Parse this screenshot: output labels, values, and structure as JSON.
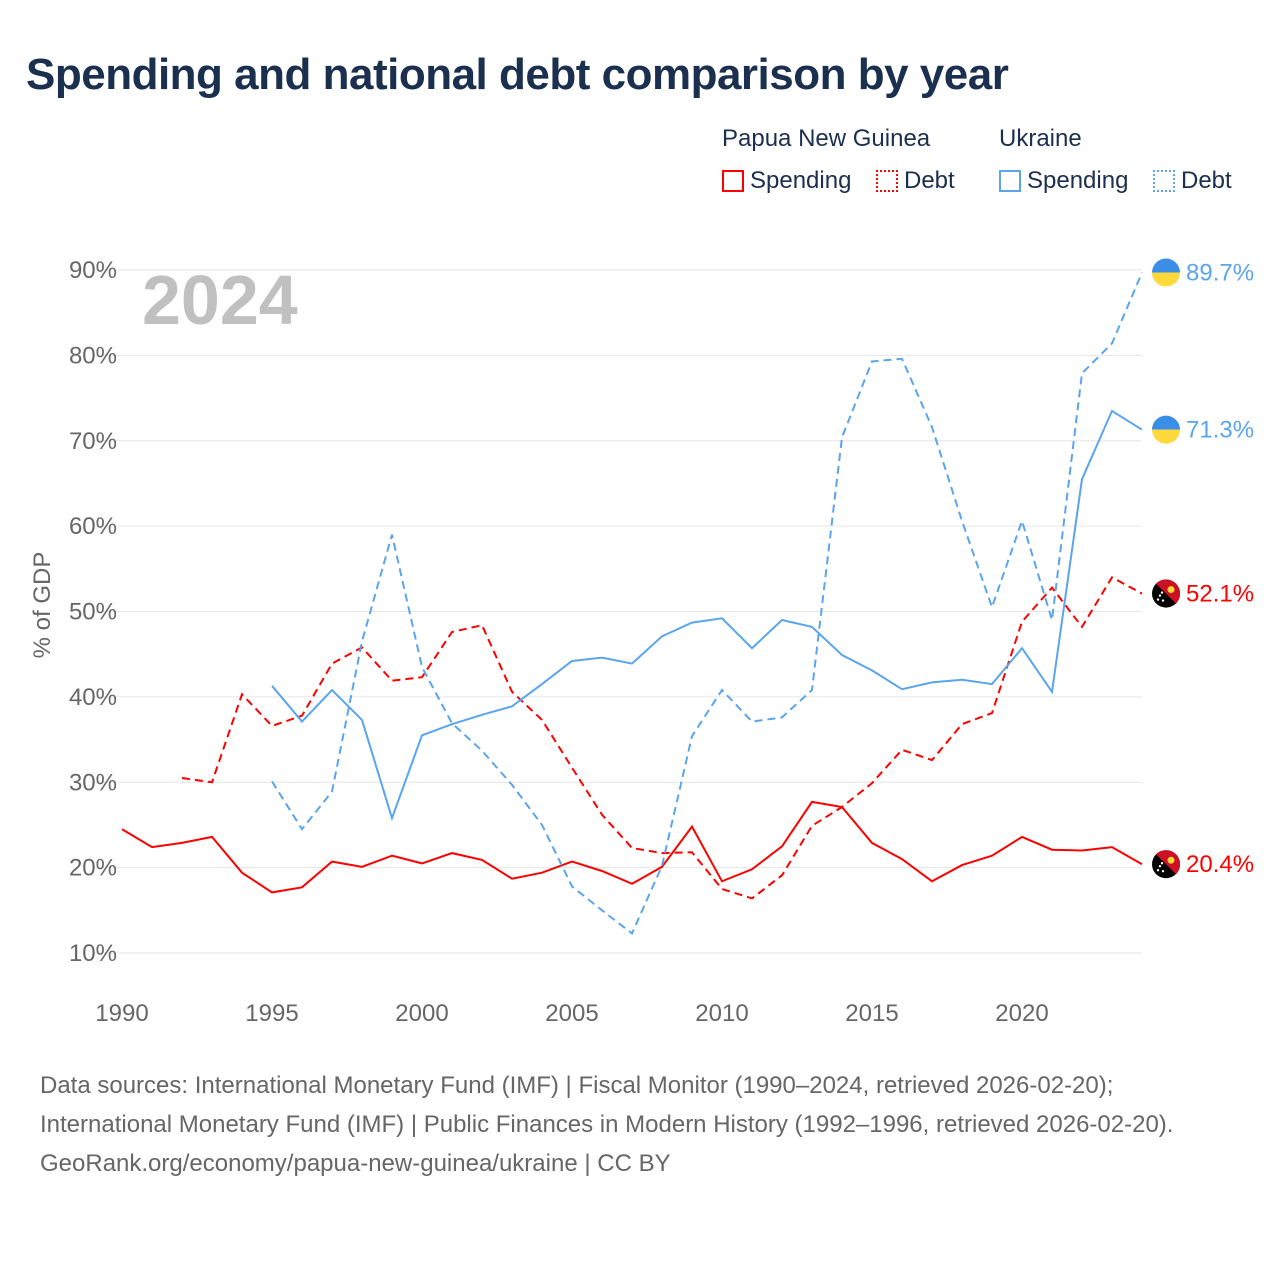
{
  "title": "Spending and national debt comparison by year",
  "legend": {
    "groups": [
      {
        "name": "Papua New Guinea",
        "items": [
          {
            "label": "Spending",
            "style": "solid"
          },
          {
            "label": "Debt",
            "style": "dotted"
          }
        ],
        "color": "#ff0000"
      },
      {
        "name": "Ukraine",
        "items": [
          {
            "label": "Spending",
            "style": "solid"
          },
          {
            "label": "Debt",
            "style": "dotted"
          }
        ],
        "color": "#5aa5ee"
      }
    ]
  },
  "footer": {
    "sources": "Data sources: International Monetary Fund (IMF) | Fiscal Monitor (1990–2024, retrieved 2026-02-20); International Monetary Fund (IMF) | Public Finances in Modern History (1992–1996, retrieved 2026-02-20).",
    "credit": "GeoRank.org/economy/papua-new-guinea/ukraine | CC BY"
  },
  "chart_data": {
    "type": "line",
    "title": "Spending and national debt comparison by year",
    "year_label": "2024",
    "xlabel": "",
    "ylabel": "% of GDP",
    "xlim": [
      1990,
      2024
    ],
    "ylim": [
      10,
      90
    ],
    "x_ticks": [
      1990,
      1995,
      2000,
      2005,
      2010,
      2015,
      2020
    ],
    "y_ticks": [
      10,
      20,
      30,
      40,
      50,
      60,
      70,
      80,
      90
    ],
    "y_tick_labels": [
      "10%",
      "20%",
      "30%",
      "40%",
      "50%",
      "60%",
      "70%",
      "80%",
      "90%"
    ],
    "grid": true,
    "legend_position": "top-right",
    "series": [
      {
        "name": "Papua New Guinea Spending",
        "color": "#ff0000",
        "dash": "solid",
        "start": 1990,
        "end_label": "20.4%",
        "values": [
          24.5,
          22.4,
          22.9,
          23.6,
          19.4,
          17.1,
          17.7,
          20.7,
          20.1,
          21.4,
          20.5,
          21.7,
          20.9,
          18.7,
          19.4,
          20.7,
          19.6,
          18.1,
          20.1,
          24.8,
          18.4,
          19.8,
          22.5,
          27.7,
          27.1,
          22.9,
          21.0,
          18.4,
          20.3,
          21.4,
          23.6,
          22.1,
          22.0,
          22.4,
          20.4
        ]
      },
      {
        "name": "Papua New Guinea Debt",
        "color": "#ff0000",
        "dash": "dashed",
        "start": 1992,
        "end_label": "52.1%",
        "values": [
          30.5,
          30.0,
          40.3,
          36.6,
          37.8,
          43.9,
          45.8,
          41.9,
          42.3,
          47.6,
          48.4,
          40.6,
          37.3,
          31.7,
          26.2,
          22.3,
          21.7,
          21.8,
          17.5,
          16.4,
          19.1,
          24.9,
          27.1,
          29.9,
          33.8,
          32.6,
          36.8,
          38.1,
          48.8,
          52.8,
          48.2,
          54.0,
          52.1
        ]
      },
      {
        "name": "Ukraine Spending",
        "color": "#5aa5ee",
        "dash": "solid",
        "start": 1995,
        "end_label": "71.3%",
        "values": [
          41.3,
          37.1,
          40.8,
          37.3,
          25.8,
          35.5,
          36.8,
          37.9,
          38.9,
          41.5,
          44.2,
          44.6,
          43.9,
          47.1,
          48.7,
          49.2,
          45.7,
          49.0,
          48.2,
          44.9,
          43.1,
          40.9,
          41.7,
          42.0,
          41.5,
          45.7,
          40.6,
          65.5,
          73.5,
          71.3
        ]
      },
      {
        "name": "Ukraine Debt",
        "color": "#5aa5ee",
        "dash": "dashed",
        "start": 1995,
        "end_label": "89.7%",
        "values": [
          30.1,
          24.5,
          28.9,
          46.5,
          59.0,
          43.5,
          36.9,
          33.7,
          29.7,
          25.0,
          17.8,
          15.0,
          12.3,
          20.2,
          35.4,
          40.8,
          37.1,
          37.6,
          40.8,
          70.4,
          79.3,
          79.6,
          71.6,
          60.6,
          50.5,
          60.6,
          49.0,
          77.9,
          81.4,
          89.7
        ]
      }
    ]
  }
}
